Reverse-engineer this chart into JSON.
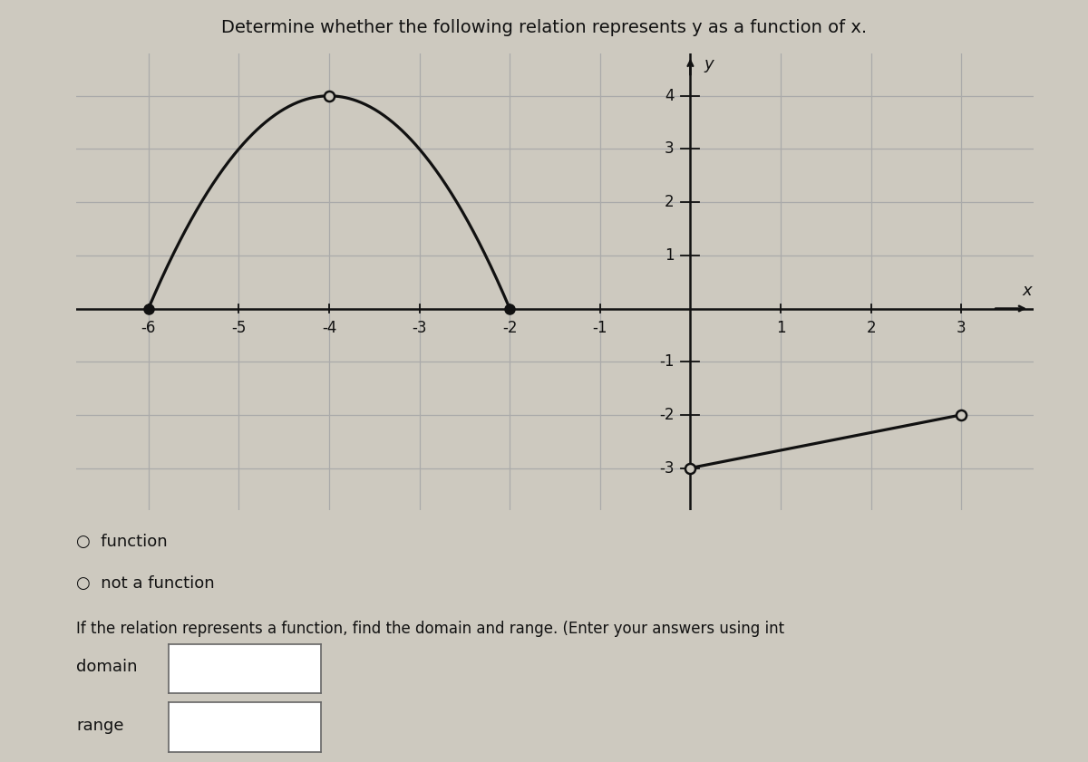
{
  "title": "Determine whether the following relation represents y as a function of x.",
  "background_color": "#cdc9bf",
  "curve1": {
    "x_start": -6,
    "x_end": -2,
    "vertex_x": -4,
    "vertex_y": 4
  },
  "curve2": {
    "x_start": 0,
    "y_start": -3,
    "x_end": 3,
    "y_end": -2
  },
  "xmin": -6.8,
  "xmax": 3.8,
  "ymin": -3.8,
  "ymax": 4.8,
  "xticks": [
    -6,
    -5,
    -4,
    -3,
    -2,
    -1,
    1,
    2,
    3
  ],
  "yticks": [
    4,
    3,
    2,
    1,
    -1,
    -2,
    -3
  ],
  "xlabel": "x",
  "ylabel": "y",
  "option1": "function",
  "option2": "not a function",
  "footer_text": "If the relation represents a function, find the domain and range. (Enter your answers using int",
  "domain_label": "domain",
  "range_label": "range",
  "line_color": "#111111",
  "dot_color": "#111111",
  "open_dot_facecolor": "#cdc9bf",
  "closed_dot_facecolor": "#111111",
  "dot_size": 7,
  "grid_color": "#aaaaaa",
  "axis_color": "#111111",
  "tick_fontsize": 12,
  "title_fontsize": 14
}
